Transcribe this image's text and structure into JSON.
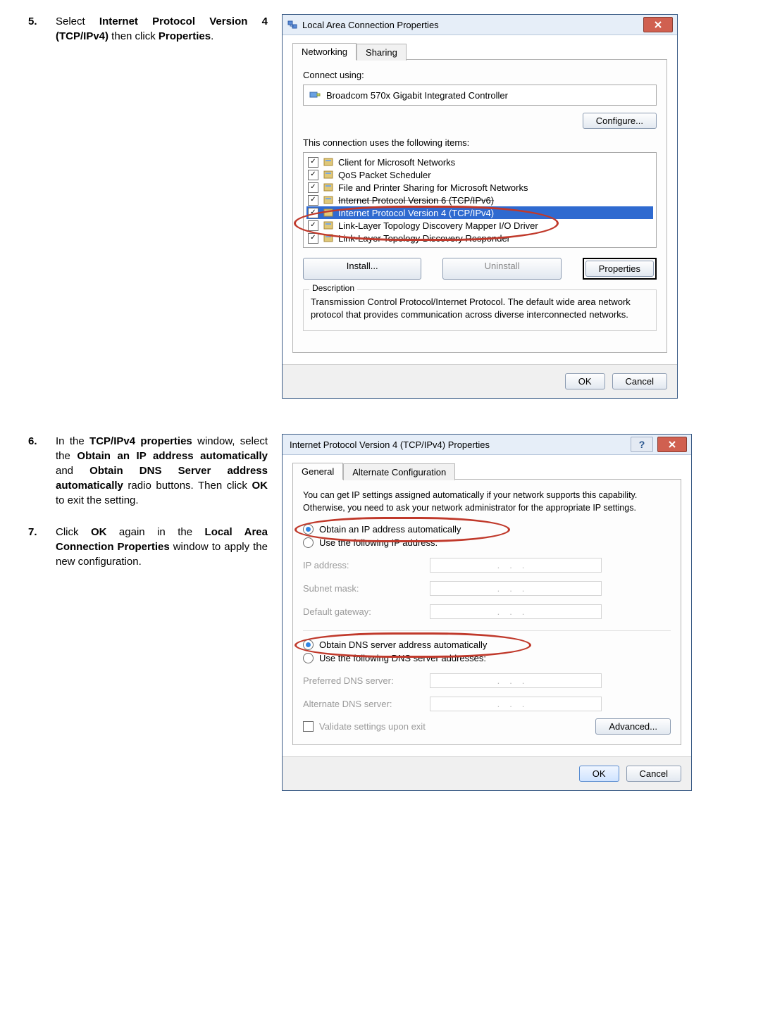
{
  "steps": {
    "s5": {
      "num": "5.",
      "text_pre": "Select ",
      "bold1": "Internet Protocol Version 4 (TCP/IPv4)",
      "mid": " then click ",
      "bold2": "Properties",
      "end": "."
    },
    "s6": {
      "num": "6.",
      "text": "In the ",
      "b1": "TCP/IPv4 properties",
      "t2": " window, select the ",
      "b2": "Obtain an IP address automatically",
      "t3": " and ",
      "b3": "Obtain DNS Server address automatically",
      "t4": " radio buttons. Then click ",
      "b4": "OK",
      "t5": " to exit the setting."
    },
    "s7": {
      "num": "7.",
      "t1": "Click ",
      "b1": "OK",
      "t2": " again in the ",
      "b2": "Local Area Connection Properties",
      "t3": " window to apply the new configuration."
    }
  },
  "dlg1": {
    "title": "Local Area Connection Properties",
    "tabs": {
      "networking": "Networking",
      "sharing": "Sharing"
    },
    "connect_label": "Connect using:",
    "adapter": "Broadcom 570x Gigabit Integrated Controller",
    "configure": "Configure...",
    "items_label": "This connection uses the following items:",
    "items": [
      {
        "label": "Client for Microsoft Networks",
        "checked": true
      },
      {
        "label": "QoS Packet Scheduler",
        "checked": true
      },
      {
        "label": "File and Printer Sharing for Microsoft Networks",
        "checked": true
      },
      {
        "label": "Internet Protocol Version 6 (TCP/IPv6)",
        "checked": true,
        "strike": true
      },
      {
        "label": "Internet Protocol Version 4 (TCP/IPv4)",
        "checked": true,
        "selected": true
      },
      {
        "label": "Link-Layer Topology Discovery Mapper I/O Driver",
        "checked": true
      },
      {
        "label": "Link-Layer Topology Discovery Responder",
        "checked": true
      }
    ],
    "install": "Install...",
    "uninstall": "Uninstall",
    "properties": "Properties",
    "description_label": "Description",
    "description": "Transmission Control Protocol/Internet Protocol. The default wide area network protocol that provides communication across diverse interconnected networks.",
    "ok": "OK",
    "cancel": "Cancel"
  },
  "dlg2": {
    "title": "Internet Protocol Version 4 (TCP/IPv4) Properties",
    "tabs": {
      "general": "General",
      "alt": "Alternate Configuration"
    },
    "intro": "You can get IP settings assigned automatically if your network supports this capability. Otherwise, you need to ask your network administrator for the appropriate IP settings.",
    "r_auto_ip": "Obtain an IP address automatically",
    "r_use_ip": "Use the following IP address:",
    "ip_addr": "IP address:",
    "subnet": "Subnet mask:",
    "gateway": "Default gateway:",
    "r_auto_dns": "Obtain DNS server address automatically",
    "r_use_dns": "Use the following DNS server addresses:",
    "pref_dns": "Preferred DNS server:",
    "alt_dns": "Alternate DNS server:",
    "validate": "Validate settings upon exit",
    "advanced": "Advanced...",
    "ok": "OK",
    "cancel": "Cancel",
    "dots": ".   .   ."
  },
  "colors": {
    "titlebar_bg": "#e6eef8",
    "close_bg": "#d06050",
    "selection_bg": "#2f6ad0",
    "annotation_red": "#c0392b"
  }
}
